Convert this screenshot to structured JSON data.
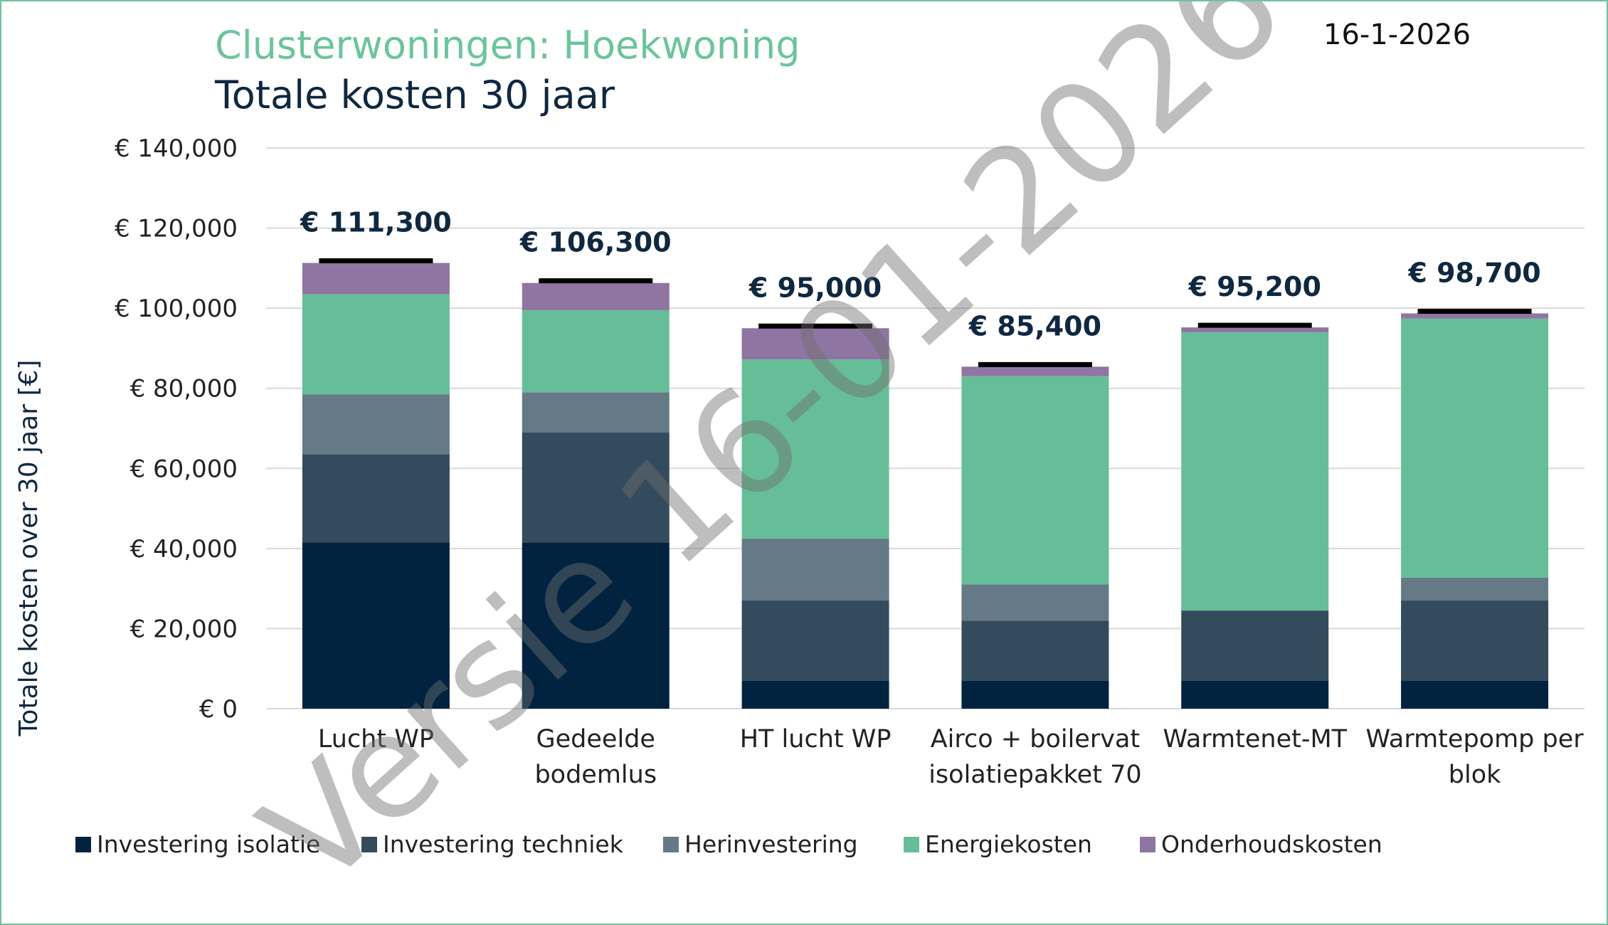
{
  "date": "16-1-2026",
  "watermark": "Versie 16-01-2026",
  "colors": {
    "title_green": "#6cc49c",
    "frame": "#6cc49c",
    "grid": "#d9d9d9",
    "total_marker": "#000000"
  },
  "chart_data": {
    "type": "bar",
    "stacked": true,
    "title": "Clusterwoningen: Hoekwoning",
    "subtitle": "Totale kosten 30 jaar",
    "xlabel": "",
    "ylabel": "Totale kosten over 30 jaar [€]",
    "ylim": [
      0,
      140000
    ],
    "yticks": [
      0,
      20000,
      40000,
      60000,
      80000,
      100000,
      120000,
      140000
    ],
    "ytick_labels": [
      "€ 0",
      "€ 20,000",
      "€ 40,000",
      "€ 60,000",
      "€ 80,000",
      "€ 100,000",
      "€ 120,000",
      "€ 140,000"
    ],
    "grid": true,
    "legend_position": "bottom",
    "categories": [
      [
        "Lucht WP"
      ],
      [
        "Gedeelde",
        "bodemlus"
      ],
      [
        "HT lucht WP"
      ],
      [
        "Airco + boilervat",
        "isolatiepakket 70"
      ],
      [
        "Warmtenet-MT"
      ],
      [
        "Warmtepomp per",
        "blok"
      ]
    ],
    "series": [
      {
        "name": "Investering isolatie",
        "color": "#012340",
        "values": [
          41500,
          41500,
          7000,
          7000,
          7000,
          7000
        ]
      },
      {
        "name": "Investering techniek",
        "color": "#344b5e",
        "values": [
          22000,
          27500,
          20000,
          15000,
          17500,
          20000
        ]
      },
      {
        "name": "Herinvestering",
        "color": "#667987",
        "values": [
          15000,
          10000,
          15500,
          9000,
          0,
          5700
        ]
      },
      {
        "name": "Energiekosten",
        "color": "#66be98",
        "values": [
          25000,
          20500,
          44700,
          52000,
          69500,
          64700
        ]
      },
      {
        "name": "Onderhoudskosten",
        "color": "#8f75a2",
        "values": [
          7800,
          6800,
          7800,
          2400,
          1200,
          1300
        ]
      }
    ],
    "totals": [
      111300,
      106300,
      95000,
      85400,
      95200,
      98700
    ],
    "total_labels": [
      "€ 111,300",
      "€ 106,300",
      "€ 95,000",
      "€ 85,400",
      "€ 95,200",
      "€ 98,700"
    ]
  }
}
